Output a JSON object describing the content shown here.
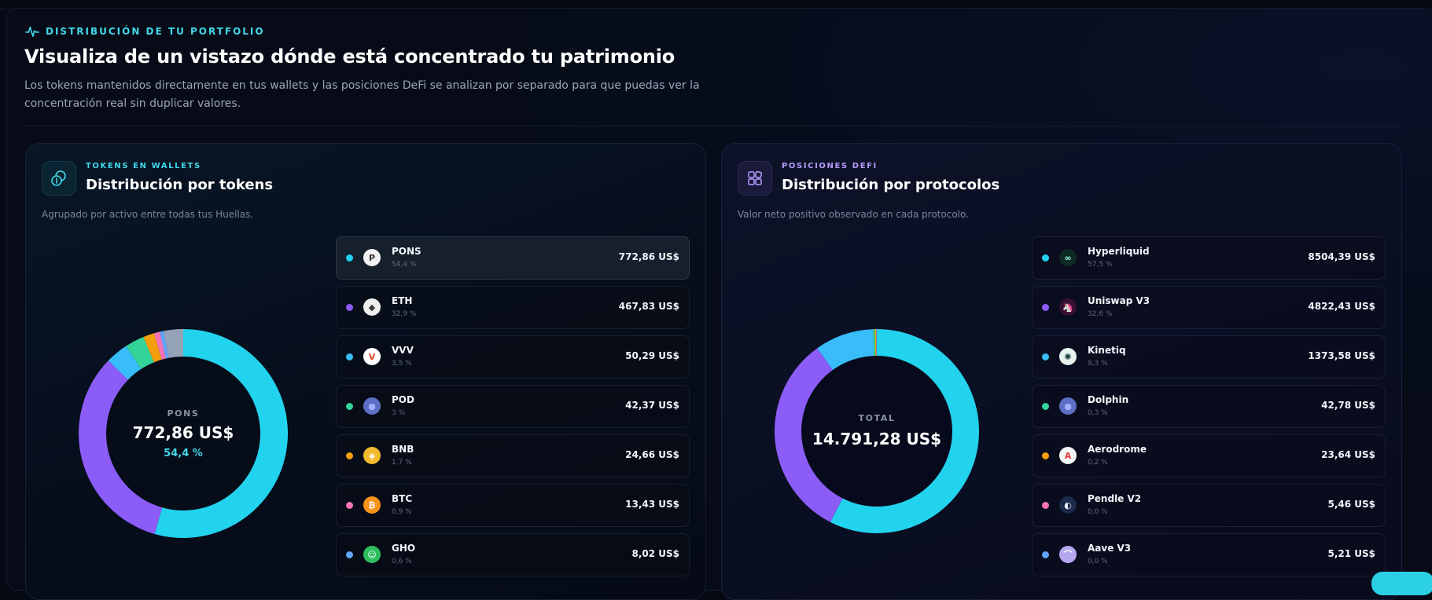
{
  "header": {
    "eyebrow": "DISTRIBUCIÓN DE TU PORTFOLIO",
    "title": "Visualiza de un vistazo dónde está concentrado tu patrimonio",
    "description": "Los tokens mantenidos directamente en tus wallets y las posiciones DeFi se analizan por separado para que puedas ver la concentración real sin duplicar valores."
  },
  "tokens_panel": {
    "eyebrow": "TOKENS EN WALLETS",
    "title": "Distribución por tokens",
    "subtitle": "Agrupado por activo entre todas tus Huellas.",
    "center": {
      "label": "PONS",
      "value": "772,86 US$",
      "pct": "54,4 %"
    },
    "items": [
      {
        "name": "PONS",
        "pct": "54,4 %",
        "value": "772,86 US$",
        "color": "#22d3ee",
        "logo": "P",
        "logo_bg": "#f2f2f2",
        "logo_fg": "#333333",
        "share": 54.4,
        "active": true
      },
      {
        "name": "ETH",
        "pct": "32,9 %",
        "value": "467,83 US$",
        "color": "#8b5cf6",
        "logo": "◆",
        "logo_bg": "#eeeeee",
        "logo_fg": "#3c3c3d",
        "share": 32.9
      },
      {
        "name": "VVV",
        "pct": "3,5 %",
        "value": "50,29 US$",
        "color": "#38bdf8",
        "logo": "V",
        "logo_bg": "#ffffff",
        "logo_fg": "#e0452b",
        "share": 3.5
      },
      {
        "name": "POD",
        "pct": "3 %",
        "value": "42,37 US$",
        "color": "#34d399",
        "logo": "●",
        "logo_bg": "#5c6fc4",
        "logo_fg": "#9fb0ff",
        "share": 3.0
      },
      {
        "name": "BNB",
        "pct": "1,7 %",
        "value": "24,66 US$",
        "color": "#f59e0b",
        "logo": "◈",
        "logo_bg": "#f3ba2f",
        "logo_fg": "#ffffff",
        "share": 1.7
      },
      {
        "name": "BTC",
        "pct": "0,9 %",
        "value": "13,43 US$",
        "color": "#f472b6",
        "logo": "₿",
        "logo_bg": "#f7931a",
        "logo_fg": "#ffffff",
        "share": 0.9
      },
      {
        "name": "GHO",
        "pct": "0,6 %",
        "value": "8,02 US$",
        "color": "#60a5fa",
        "logo": "☺",
        "logo_bg": "#2ebd5f",
        "logo_fg": "#ffffff",
        "share": 0.6
      }
    ],
    "other_share": 3.0,
    "other_color": "#94a3b8"
  },
  "defi_panel": {
    "eyebrow": "POSICIONES DEFI",
    "title": "Distribución por protocolos",
    "subtitle": "Valor neto positivo observado en cada protocolo.",
    "center": {
      "label": "TOTAL",
      "value": "14.791,28 US$"
    },
    "items": [
      {
        "name": "Hyperliquid",
        "pct": "57,5 %",
        "value": "8504,39 US$",
        "color": "#22d3ee",
        "logo": "∞",
        "logo_bg": "#0f2a22",
        "logo_fg": "#97fce4",
        "share": 57.5
      },
      {
        "name": "Uniswap V3",
        "pct": "32,6 %",
        "value": "4822,43 US$",
        "color": "#8b5cf6",
        "logo": "🦄",
        "logo_bg": "#3a1030",
        "logo_fg": "#ff007a",
        "share": 32.6
      },
      {
        "name": "Kinetiq",
        "pct": "9,3 %",
        "value": "1373,58 US$",
        "color": "#38bdf8",
        "logo": "✺",
        "logo_bg": "#e6f2ee",
        "logo_fg": "#0f3a35",
        "share": 9.3
      },
      {
        "name": "Dolphin",
        "pct": "0,3 %",
        "value": "42,78 US$",
        "color": "#34d399",
        "logo": "●",
        "logo_bg": "#5c6fc4",
        "logo_fg": "#9fb0ff",
        "share": 0.3
      },
      {
        "name": "Aerodrome",
        "pct": "0,2 %",
        "value": "23,64 US$",
        "color": "#f59e0b",
        "logo": "A",
        "logo_bg": "#f5f5f5",
        "logo_fg": "#e03a3a",
        "share": 0.2
      },
      {
        "name": "Pendle V2",
        "pct": "0,0 %",
        "value": "5,46 US$",
        "color": "#f472b6",
        "logo": "◐",
        "logo_bg": "#1b2a4a",
        "logo_fg": "#e8eefc",
        "share": 0.05
      },
      {
        "name": "Aave V3",
        "pct": "0,0 %",
        "value": "5,21 US$",
        "color": "#60a5fa",
        "logo": "⌒",
        "logo_bg": "#b6a8f0",
        "logo_fg": "#ffffff",
        "share": 0.05
      }
    ]
  }
}
